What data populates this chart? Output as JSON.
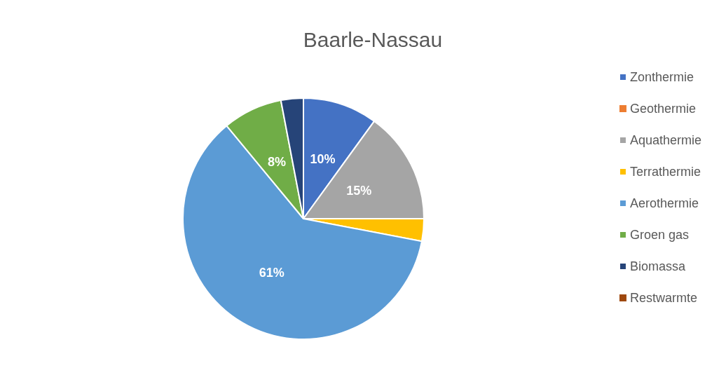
{
  "chart_data": {
    "type": "pie",
    "title": "Baarle-Nassau",
    "categories": [
      "Zonthermie",
      "Geothermie",
      "Aquathermie",
      "Terrathermie",
      "Aerothermie",
      "Groen gas",
      "Biomassa",
      "Restwarmte"
    ],
    "values": [
      10,
      0,
      15,
      3,
      61,
      8,
      3,
      0
    ],
    "colors": [
      "#4472c4",
      "#ed7d31",
      "#a5a5a5",
      "#ffc000",
      "#5b9bd5",
      "#70ad47",
      "#264478",
      "#9e480e"
    ],
    "value_labels": [
      "10%",
      null,
      "15%",
      null,
      "61%",
      "8%",
      null,
      null
    ],
    "legend": "right"
  }
}
